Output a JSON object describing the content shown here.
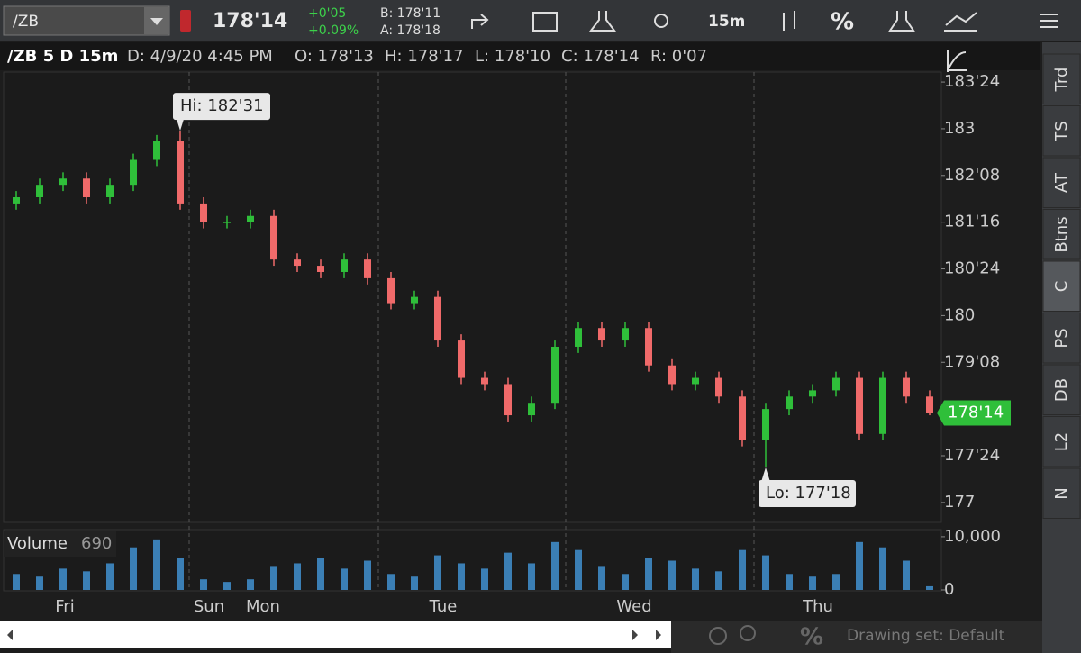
{
  "toolbar": {
    "symbol": "/ZB",
    "last": "178'14",
    "change": "+0'05",
    "change_pct": "+0.09%",
    "bid": "B: 178'11",
    "ask": "A: 178'18",
    "interval": "15m",
    "percent": "%"
  },
  "header": {
    "title": "/ZB 5 D 15m",
    "date": "D: 4/9/20 4:45 PM",
    "open": "O: 178'13",
    "high": "H: 178'17",
    "low": "L: 178'10",
    "close": "C: 178'14",
    "range": "R: 0'07"
  },
  "side_tabs": [
    "Trd",
    "TS",
    "AT",
    "Btns",
    "C",
    "PS",
    "DB",
    "L2",
    "N"
  ],
  "footer": {
    "drawing_set": "Drawing set: Default",
    "percent": "%"
  },
  "chart_data": {
    "type": "candlestick",
    "open": [
      181.8,
      181.9,
      182.1,
      182.2,
      181.9,
      182.1,
      182.5,
      182.8,
      181.8,
      181.5,
      181.5,
      181.6,
      180.9,
      180.8,
      180.7,
      180.9,
      180.6,
      180.2,
      180.3,
      179.6,
      179.0,
      178.9,
      178.4,
      178.6,
      179.5,
      179.8,
      179.6,
      179.8,
      179.2,
      178.9,
      179.0,
      178.7,
      178.0,
      178.5,
      178.7,
      178.8,
      179.0,
      178.1,
      179.0,
      178.7
    ],
    "high": [
      182.0,
      182.2,
      182.3,
      182.3,
      182.2,
      182.6,
      182.9,
      182.97,
      181.9,
      181.6,
      181.7,
      181.7,
      181.0,
      180.9,
      181.0,
      181.0,
      180.7,
      180.4,
      180.4,
      179.7,
      179.1,
      179.0,
      178.7,
      179.6,
      179.9,
      179.9,
      179.9,
      179.9,
      179.3,
      179.1,
      179.1,
      178.8,
      178.6,
      178.8,
      178.9,
      179.1,
      179.1,
      179.1,
      179.1,
      178.8
    ],
    "low": [
      181.7,
      181.8,
      182.0,
      181.8,
      181.8,
      182.0,
      182.4,
      181.7,
      181.4,
      181.4,
      181.4,
      180.8,
      180.7,
      180.6,
      180.6,
      180.5,
      180.1,
      180.1,
      179.5,
      178.9,
      178.8,
      178.3,
      178.3,
      178.5,
      179.4,
      179.5,
      179.5,
      179.1,
      178.8,
      178.8,
      178.6,
      177.9,
      177.5625,
      178.4,
      178.6,
      178.7,
      178.0,
      178.0,
      178.6,
      178.4
    ],
    "close": [
      181.9,
      182.1,
      182.2,
      181.9,
      182.1,
      182.5,
      182.8,
      181.8,
      181.5,
      181.5,
      181.6,
      180.9,
      180.8,
      180.7,
      180.9,
      180.6,
      180.2,
      180.3,
      179.6,
      179.0,
      178.9,
      178.4,
      178.6,
      179.5,
      179.8,
      179.6,
      179.8,
      179.2,
      178.9,
      179.0,
      178.7,
      178.0,
      178.5,
      178.7,
      178.8,
      179.0,
      178.1,
      179.0,
      178.7,
      178.4375
    ],
    "up_color": "#2fbf3a",
    "down_color": "#f06a6a",
    "ylim": [
      176.68,
      183.91
    ],
    "yticks": [
      177,
      {
        "value": 177.75,
        "label": "177'24"
      },
      {
        "value": 179.25,
        "label": "179'08"
      },
      180,
      {
        "value": 180.75,
        "label": "180'24"
      },
      {
        "value": 181.5,
        "label": "181'16"
      },
      {
        "value": 182.25,
        "label": "182'08"
      },
      183,
      {
        "value": 183.75,
        "label": "183'24"
      }
    ],
    "x_labels": [
      "Fri",
      "Sun",
      "Mon",
      "Tue",
      "Wed",
      "Thu"
    ],
    "annotations": [
      {
        "text": "Hi: 182'31",
        "value": 182.96875
      },
      {
        "text": "Lo: 177'18",
        "value": 177.5625
      }
    ],
    "last_price": {
      "value": 178.4375,
      "label": "178'14",
      "color": "#2fbf3a"
    },
    "volume": {
      "title": "Volume",
      "color": "#3b7fb5",
      "values": [
        3000,
        2500,
        4000,
        3500,
        5000,
        8000,
        9500,
        6000,
        2000,
        1500,
        2000,
        4500,
        5000,
        6000,
        4000,
        5500,
        3000,
        2500,
        6500,
        5000,
        4000,
        7000,
        5000,
        9000,
        7500,
        4500,
        3000,
        6000,
        5500,
        4000,
        3500,
        7500,
        6500,
        3000,
        2500,
        3000,
        9000,
        8000,
        5500,
        690
      ],
      "ylim": [
        0,
        11000
      ],
      "yticks": [
        {
          "value": 10000,
          "label": "10,000"
        },
        0
      ]
    }
  }
}
